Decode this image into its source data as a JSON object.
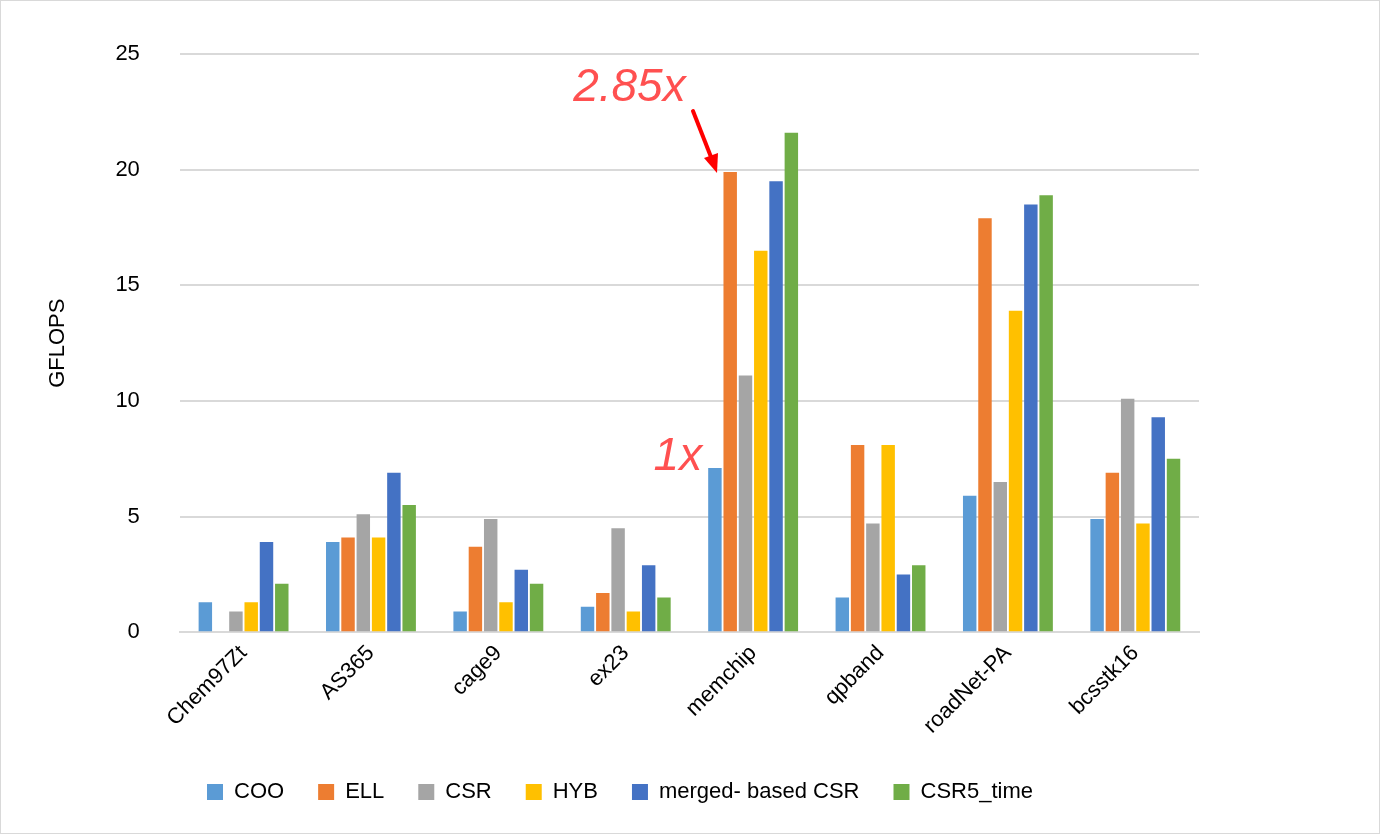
{
  "chart_data": {
    "type": "bar",
    "ylabel": "GFLOPS",
    "categories": [
      "Chem97Zt",
      "AS365",
      "cage9",
      "ex23",
      "memchip",
      "qpband",
      "roadNet-PA",
      "bcsstk16"
    ],
    "series": [
      {
        "name": "COO",
        "color": "#5b9bd5",
        "values": [
          1.3,
          3.9,
          0.9,
          1.1,
          7.1,
          1.5,
          5.9,
          4.9
        ]
      },
      {
        "name": "ELL",
        "color": "#ed7d31",
        "values": [
          null,
          4.1,
          3.7,
          1.7,
          19.9,
          8.1,
          17.9,
          6.9
        ]
      },
      {
        "name": "CSR",
        "color": "#a5a5a5",
        "values": [
          0.9,
          5.1,
          4.9,
          4.5,
          11.1,
          4.7,
          6.5,
          10.1
        ]
      },
      {
        "name": "HYB",
        "color": "#ffc000",
        "values": [
          1.3,
          4.1,
          1.3,
          0.9,
          16.5,
          8.1,
          13.9,
          4.7
        ]
      },
      {
        "name": "merged- based CSR",
        "color": "#4472c4",
        "values": [
          3.9,
          6.9,
          2.7,
          2.9,
          19.5,
          2.5,
          18.5,
          9.3
        ]
      },
      {
        "name": "CSR5_time",
        "color": "#70ad47",
        "values": [
          2.1,
          5.5,
          2.1,
          1.5,
          21.6,
          2.9,
          18.9,
          7.5
        ]
      }
    ],
    "ylim": [
      0,
      25
    ],
    "yticks": [
      0,
      5,
      10,
      15,
      20,
      25
    ],
    "grid": "y",
    "legend": "bottom",
    "annotations": [
      "2.85x",
      {
        "text": "1x",
        "x": "memchip",
        "y": 7.1
      }
    ]
  }
}
